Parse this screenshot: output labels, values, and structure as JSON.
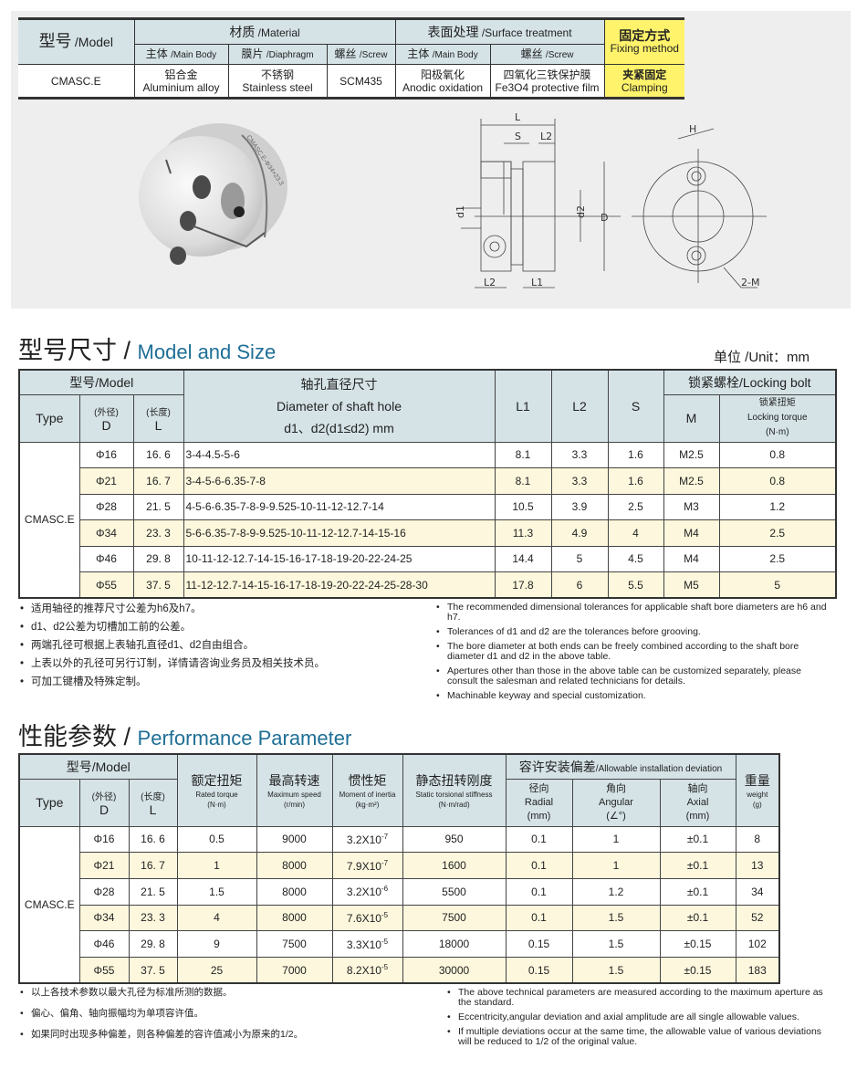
{
  "spec_table": {
    "model_label": "型号",
    "model_en": "/Model",
    "material_label": "材质",
    "material_en": "/Material",
    "surface_label": "表面处理",
    "surface_en": "/Surface treatment",
    "fixing_label": "固定方式",
    "fixing_en": "Fixing method",
    "sub": [
      {
        "cn": "主体",
        "en": "/Main Body"
      },
      {
        "cn": "膜片",
        "en": "/Diaphragm"
      },
      {
        "cn": "螺丝",
        "en": "/Screw"
      },
      {
        "cn": "主体",
        "en": "/Main Body"
      },
      {
        "cn": "螺丝",
        "en": "/Screw"
      }
    ],
    "row": {
      "model": "CMASC.E",
      "cells": [
        {
          "cn": "铝合金",
          "en": "Aluminium alloy"
        },
        {
          "cn": "不锈钢",
          "en": "Stainless steel"
        },
        {
          "cn": "",
          "en": "SCM435"
        },
        {
          "cn": "阳极氧化",
          "en": "Anodic oxidation"
        },
        {
          "cn": "四氧化三铁保护膜",
          "en": "Fe3O4 protective film"
        },
        {
          "cn": "夹紧固定",
          "en": "Clamping"
        }
      ]
    }
  },
  "drawing": {
    "product_engraving": "CMASC.E-Φ34×23.3",
    "labels": [
      "L",
      "S",
      "L2",
      "d1",
      "d2",
      "D",
      "L2",
      "L1",
      "H",
      "2-M"
    ]
  },
  "size_section": {
    "title_cn": "型号尺寸 /",
    "title_en": "Model and Size",
    "unit": "单位 /Unit：mm",
    "headers": {
      "model": "型号/Model",
      "diam_cn": "轴孔直径尺寸",
      "diam_en": "Diameter of shaft hole",
      "diam_sub": "d1、d2(d1≤d2) mm",
      "L1": "L1",
      "L2": "L2",
      "S": "S",
      "bolt": "锁紧螺栓/Locking bolt",
      "type": "Type",
      "d_cn": "(外径)",
      "d": "D",
      "l_cn": "(长度)",
      "l": "L",
      "M": "M",
      "torque_cn": "锁紧扭矩",
      "torque_en": "Locking torque",
      "torque_unit": "(N·m)"
    },
    "type_value": "CMASC.E",
    "rows": [
      {
        "D": "Φ16",
        "L": "16. 6",
        "holes": "3-4-4.5-5-6",
        "L1": "8.1",
        "L2": "3.3",
        "S": "1.6",
        "M": "M2.5",
        "torque": "0.8"
      },
      {
        "D": "Φ21",
        "L": "16. 7",
        "holes": "3-4-5-6-6.35-7-8",
        "L1": "8.1",
        "L2": "3.3",
        "S": "1.6",
        "M": "M2.5",
        "torque": "0.8"
      },
      {
        "D": "Φ28",
        "L": "21. 5",
        "holes": "4-5-6-6.35-7-8-9-9.525-10-11-12-12.7-14",
        "L1": "10.5",
        "L2": "3.9",
        "S": "2.5",
        "M": "M3",
        "torque": "1.2"
      },
      {
        "D": "Φ34",
        "L": "23. 3",
        "holes": "5-6-6.35-7-8-9-9.525-10-11-12-12.7-14-15-16",
        "L1": "11.3",
        "L2": "4.9",
        "S": "4",
        "M": "M4",
        "torque": "2.5"
      },
      {
        "D": "Φ46",
        "L": "29. 8",
        "holes": "10-11-12-12.7-14-15-16-17-18-19-20-22-24-25",
        "L1": "14.4",
        "L2": "5",
        "S": "4.5",
        "M": "M4",
        "torque": "2.5"
      },
      {
        "D": "Φ55",
        "L": "37. 5",
        "holes": "11-12-12.7-14-15-16-17-18-19-20-22-24-25-28-30",
        "L1": "17.8",
        "L2": "6",
        "S": "5.5",
        "M": "M5",
        "torque": "5"
      }
    ],
    "notes_cn": [
      "适用轴径的推荐尺寸公差为h6及h7。",
      "d1、d2公差为切槽加工前的公差。",
      "两端孔径可根据上表轴孔直径d1、d2自由组合。",
      "上表以外的孔径可另行订制，详情请咨询业务员及相关技术员。",
      "可加工键槽及特殊定制。"
    ],
    "notes_en": [
      "The recommended dimensional tolerances for applicable shaft bore diameters are h6 and h7.",
      "Tolerances of d1 and d2 are the tolerances before grooving.",
      "The bore diameter at both ends can be freely combined according to the shaft bore diameter d1 and d2 in the above table.",
      "Apertures other than those in the above table can be customized separately, please consult the salesman and related technicians for details.",
      "Machinable keyway and special customization."
    ]
  },
  "perf_section": {
    "title_cn": "性能参数 /",
    "title_en": "Performance Parameter",
    "headers": {
      "model": "型号/Model",
      "type": "Type",
      "d_cn": "(外径)",
      "d": "D",
      "l_cn": "(长度)",
      "l": "L",
      "rated_cn": "额定扭矩",
      "rated_en": "Rated torque",
      "rated_unit": "(N·m)",
      "speed_cn": "最高转速",
      "speed_en": "Maximum speed",
      "speed_unit": "(r/min)",
      "inertia_cn": "惯性矩",
      "inertia_en": "Moment of inertia",
      "inertia_unit": "(kg·m²)",
      "stiff_cn": "静态扭转刚度",
      "stiff_en": "Static torsional stiffness",
      "stiff_unit": "(N·m/rad)",
      "dev_cn": "容许安装偏差",
      "dev_en": "/Allowable installation deviation",
      "radial_cn": "径向",
      "radial_en": "Radial",
      "radial_unit": "(mm)",
      "angular_cn": "角向",
      "angular_en": "Angular",
      "angular_unit": "(∠°)",
      "axial_cn": "轴向",
      "axial_en": "Axial",
      "axial_unit": "(mm)",
      "weight_cn": "重量",
      "weight_en": "weight",
      "weight_unit": "(g)"
    },
    "type_value": "CMASC.E",
    "rows": [
      {
        "D": "Φ16",
        "L": "16. 6",
        "rated": "0.5",
        "speed": "9000",
        "inertia": "3.2X10",
        "exp": "-7",
        "stiff": "950",
        "radial": "0.1",
        "angular": "1",
        "axial": "±0.1",
        "weight": "8"
      },
      {
        "D": "Φ21",
        "L": "16. 7",
        "rated": "1",
        "speed": "8000",
        "inertia": "7.9X10",
        "exp": "-7",
        "stiff": "1600",
        "radial": "0.1",
        "angular": "1",
        "axial": "±0.1",
        "weight": "13"
      },
      {
        "D": "Φ28",
        "L": "21. 5",
        "rated": "1.5",
        "speed": "8000",
        "inertia": "3.2X10",
        "exp": "-6",
        "stiff": "5500",
        "radial": "0.1",
        "angular": "1.2",
        "axial": "±0.1",
        "weight": "34"
      },
      {
        "D": "Φ34",
        "L": "23. 3",
        "rated": "4",
        "speed": "8000",
        "inertia": "7.6X10",
        "exp": "-5",
        "stiff": "7500",
        "radial": "0.1",
        "angular": "1.5",
        "axial": "±0.1",
        "weight": "52"
      },
      {
        "D": "Φ46",
        "L": "29. 8",
        "rated": "9",
        "speed": "7500",
        "inertia": "3.3X10",
        "exp": "-5",
        "stiff": "18000",
        "radial": "0.15",
        "angular": "1.5",
        "axial": "±0.15",
        "weight": "102"
      },
      {
        "D": "Φ55",
        "L": "37. 5",
        "rated": "25",
        "speed": "7000",
        "inertia": "8.2X10",
        "exp": "-5",
        "stiff": "30000",
        "radial": "0.15",
        "angular": "1.5",
        "axial": "±0.15",
        "weight": "183"
      }
    ],
    "notes_cn": [
      "以上各技术参数以最大孔径为标准所测的数据。",
      "偏心、偏角、轴向振幅均为单项容许值。",
      "如果同时出现多种偏差，则各种偏差的容许值减小为原来的1/2。"
    ],
    "notes_en": [
      "The above technical parameters are measured according to the maximum aperture as the standard.",
      "Eccentricity,angular deviation and axial amplitude are all single allowable values.",
      "If multiple deviations occur at the same time, the allowable value of various deviations will be reduced to 1/2 of the original value."
    ]
  },
  "colors": {
    "header": "#d5e3e7",
    "row_alt": "#fdf8dd",
    "fixing": "#fff36b",
    "title_en": "#1e6f96"
  }
}
